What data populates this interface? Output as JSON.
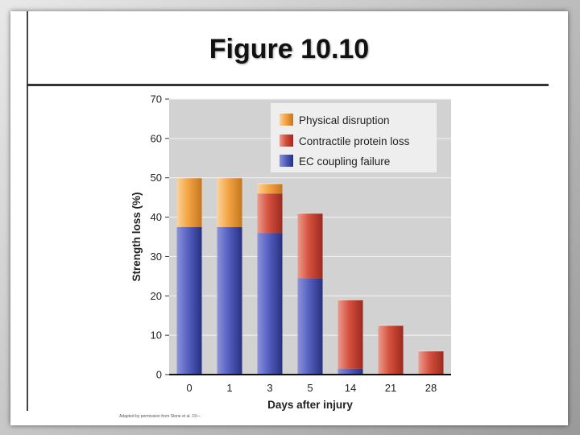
{
  "slide": {
    "title": "Figure 10.10"
  },
  "credit": "Adapted by permission from Stone et al. 19—",
  "colors": {
    "plot_bg": "#d2d2d2",
    "physical": "#f2a041",
    "protein": "#d24a3a",
    "coupling": "#4a54b4"
  },
  "chart_data": {
    "type": "bar",
    "stacked": true,
    "categories": [
      "0",
      "1",
      "3",
      "5",
      "14",
      "21",
      "28"
    ],
    "xlabel": "Days after injury",
    "ylabel": "Strength loss  (%)",
    "ylim": [
      0,
      70
    ],
    "yticks": [
      0,
      10,
      20,
      30,
      40,
      50,
      60,
      70
    ],
    "grid": true,
    "legend_position": "top-right",
    "series": [
      {
        "name": "EC coupling failure",
        "color": "#4a54b4",
        "values": [
          37.5,
          37.5,
          36,
          24.5,
          1.5,
          0,
          0
        ]
      },
      {
        "name": "Contractile protein loss",
        "color": "#d24a3a",
        "values": [
          0,
          0,
          10,
          16.5,
          17.5,
          12.5,
          6
        ]
      },
      {
        "name": "Physical disruption",
        "color": "#f2a041",
        "values": [
          12.5,
          12.5,
          2.5,
          0,
          0,
          0,
          0
        ]
      }
    ],
    "legend_order": [
      "Physical disruption",
      "Contractile protein loss",
      "EC coupling failure"
    ]
  }
}
